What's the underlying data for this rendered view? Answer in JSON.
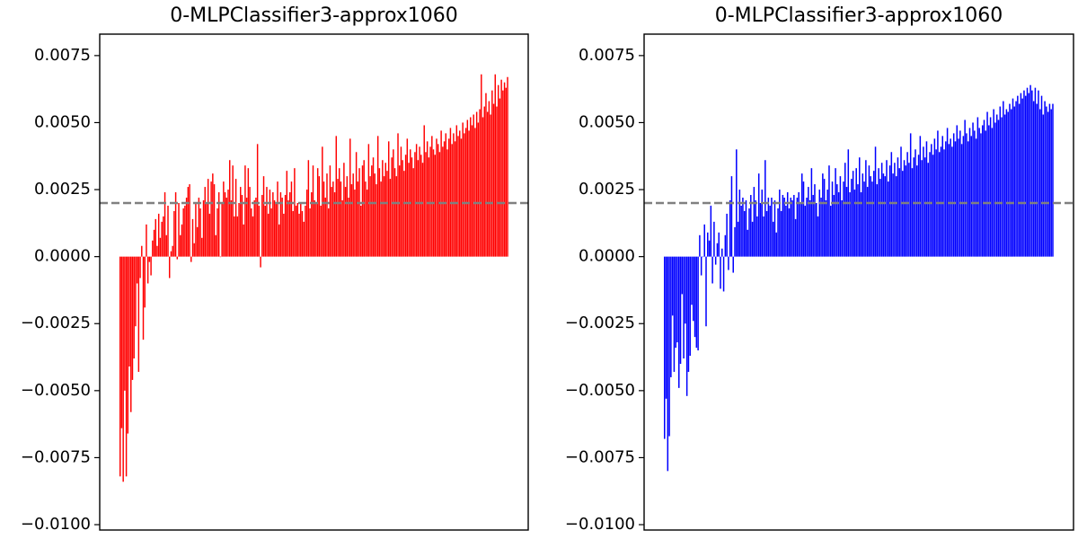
{
  "chart_data": [
    {
      "type": "bar",
      "title": "0-MLPClassifier3-approx1060",
      "xlabel": "",
      "ylabel": "",
      "color": "#ff0000",
      "ylim": [
        -0.0102,
        0.0083
      ],
      "yticks": [
        0.0075,
        0.005,
        0.0025,
        0.0,
        -0.0025,
        -0.005,
        -0.0075,
        -0.01
      ],
      "ytick_labels": [
        "0.0075",
        "0.0050",
        "0.0025",
        "0.0000",
        "−0.0025",
        "−0.0050",
        "−0.0075",
        "−0.0100"
      ],
      "xticks_visible": false,
      "reference_line": {
        "y": 0.002,
        "style": "dashed",
        "color": "#808080"
      },
      "bar_count": 250,
      "sorted_ascending_with_noise": true,
      "value_range": {
        "min": -0.0084,
        "max": 0.0068
      },
      "series": [
        {
          "values": [
            -0.0082,
            -0.0064,
            -0.0084,
            -0.005,
            -0.0082,
            -0.0066,
            -0.0041,
            -0.0058,
            -0.0046,
            -0.0038,
            -0.0026,
            -0.001,
            -0.0043,
            -0.0008,
            0.0004,
            -0.0031,
            -0.0019,
            0.0012,
            -0.001,
            -0.0002,
            -0.0007,
            0.0006,
            0.001,
            0.0014,
            0.0004,
            0.0016,
            0.0007,
            0.0013,
            0.0015,
            0.0024,
            0.0008,
            0.0019,
            -0.0008,
            0.0002,
            0.0004,
            0.0017,
            0.0024,
            -0.0001,
            0.002,
            0.0008,
            0.0012,
            0.0018,
            0.0019,
            0.0022,
            0.0026,
            0.0027,
            -0.0002,
            0.0014,
            0.0005,
            0.002,
            0.0011,
            0.0022,
            0.0018,
            0.0007,
            0.0021,
            0.0026,
            0.002,
            0.0029,
            0.0016,
            0.0028,
            0.0031,
            0.0027,
            0.0008,
            0.0018,
            0.0024,
            0.0,
            0.002,
            0.0028,
            0.0024,
            0.0022,
            0.0025,
            0.0036,
            0.0021,
            0.0034,
            0.0015,
            0.0029,
            0.0015,
            0.002,
            0.0026,
            0.0023,
            0.0012,
            0.0034,
            0.0022,
            0.0033,
            0.0026,
            0.0018,
            0.0015,
            0.0021,
            0.0022,
            0.0042,
            0.0019,
            -0.0004,
            0.0023,
            0.003,
            0.0019,
            0.0026,
            0.0016,
            0.0025,
            0.0018,
            0.0024,
            0.0021,
            0.002,
            0.0028,
            0.0012,
            0.0024,
            0.0022,
            0.0016,
            0.0023,
            0.0032,
            0.0021,
            0.0024,
            0.0028,
            0.0017,
            0.0033,
            0.0019,
            0.002,
            0.0016,
            0.002,
            0.0017,
            0.0013,
            0.0019,
            0.0025,
            0.0036,
            0.0018,
            0.0024,
            0.0034,
            0.0021,
            0.002,
            0.0033,
            0.003,
            0.0019,
            0.0041,
            0.0028,
            0.0022,
            0.0031,
            0.0018,
            0.0034,
            0.0026,
            0.0028,
            0.0024,
            0.0045,
            0.0029,
            0.0033,
            0.0028,
            0.0021,
            0.0035,
            0.0026,
            0.003,
            0.0022,
            0.0044,
            0.0027,
            0.0031,
            0.0025,
            0.0039,
            0.0028,
            0.0033,
            0.0019,
            0.0034,
            0.0036,
            0.0028,
            0.0025,
            0.0042,
            0.003,
            0.0034,
            0.0037,
            0.0031,
            0.0027,
            0.0045,
            0.0033,
            0.0028,
            0.0036,
            0.003,
            0.0035,
            0.0032,
            0.0043,
            0.0029,
            0.0037,
            0.004,
            0.0033,
            0.003,
            0.0046,
            0.0034,
            0.0041,
            0.0036,
            0.0032,
            0.0038,
            0.0044,
            0.0035,
            0.004,
            0.0037,
            0.0033,
            0.0039,
            0.0042,
            0.0036,
            0.0041,
            0.0038,
            0.0035,
            0.0049,
            0.0039,
            0.0043,
            0.0037,
            0.0041,
            0.0045,
            0.004,
            0.0038,
            0.0044,
            0.0042,
            0.0039,
            0.0047,
            0.0041,
            0.0043,
            0.0046,
            0.004,
            0.0044,
            0.0048,
            0.0042,
            0.0046,
            0.0043,
            0.0049,
            0.0045,
            0.0047,
            0.0044,
            0.005,
            0.0046,
            0.0048,
            0.0051,
            0.0047,
            0.0052,
            0.0049,
            0.0053,
            0.0048,
            0.0054,
            0.005,
            0.0055,
            0.0068,
            0.0052,
            0.0056,
            0.0061,
            0.0054,
            0.0058,
            0.0053,
            0.0062,
            0.0057,
            0.0068,
            0.0056,
            0.0064,
            0.0059,
            0.0066,
            0.0062,
            0.0065,
            0.0063,
            0.0067
          ]
        }
      ]
    },
    {
      "type": "bar",
      "title": "0-MLPClassifier3-approx1060",
      "xlabel": "",
      "ylabel": "",
      "color": "#0000ff",
      "ylim": [
        -0.0102,
        0.0083
      ],
      "yticks": [
        0.0075,
        0.005,
        0.0025,
        0.0,
        -0.0025,
        -0.005,
        -0.0075,
        -0.01
      ],
      "ytick_labels": [
        "0.0075",
        "0.0050",
        "0.0025",
        "0.0000",
        "−0.0025",
        "−0.0050",
        "−0.0075",
        "−0.0100"
      ],
      "xticks_visible": false,
      "reference_line": {
        "y": 0.002,
        "style": "dashed",
        "color": "#808080"
      },
      "bar_count": 250,
      "sorted_ascending_with_noise": true,
      "value_range": {
        "min": -0.008,
        "max": 0.0064
      },
      "series": [
        {
          "values": [
            -0.0068,
            -0.0053,
            -0.008,
            -0.0067,
            -0.0045,
            -0.0022,
            -0.0043,
            -0.0034,
            -0.0032,
            -0.0049,
            -0.004,
            -0.0014,
            -0.0038,
            -0.0025,
            -0.0052,
            -0.0043,
            -0.0037,
            -0.0018,
            -0.0024,
            -0.003,
            -0.0034,
            -0.0035,
            0.0008,
            -0.0007,
            0.0,
            0.0012,
            -0.0026,
            0.0009,
            0.0006,
            0.0019,
            -0.001,
            0.0013,
            -0.0003,
            0.0005,
            0.0009,
            -0.0012,
            0.0003,
            -0.0013,
            0.0008,
            0.0016,
            -0.0005,
            0.0021,
            0.003,
            -0.0006,
            0.0011,
            0.004,
            0.0013,
            0.0025,
            0.0019,
            0.0022,
            0.0017,
            0.0021,
            0.001,
            0.0018,
            0.0023,
            0.0013,
            0.0026,
            0.0021,
            0.0015,
            0.0031,
            0.002,
            0.0025,
            0.0015,
            0.0036,
            0.0017,
            0.0022,
            0.0019,
            0.0022,
            0.0013,
            0.0021,
            0.0009,
            0.0018,
            0.0025,
            0.0017,
            0.0023,
            0.0022,
            0.0019,
            0.0024,
            0.0018,
            0.0022,
            0.0021,
            0.0023,
            0.0014,
            0.0022,
            0.0024,
            0.002,
            0.0031,
            0.0028,
            0.0019,
            0.0022,
            0.0026,
            0.0021,
            0.0033,
            0.0023,
            0.0027,
            0.002,
            0.0015,
            0.0025,
            0.0022,
            0.0031,
            0.0029,
            0.0021,
            0.0025,
            0.0034,
            0.0019,
            0.0028,
            0.0023,
            0.0033,
            0.0027,
            0.0024,
            0.003,
            0.0021,
            0.0028,
            0.0035,
            0.0026,
            0.004,
            0.0024,
            0.0029,
            0.0032,
            0.0025,
            0.0033,
            0.0027,
            0.0037,
            0.0024,
            0.0031,
            0.0028,
            0.0036,
            0.0026,
            0.0034,
            0.003,
            0.0028,
            0.0032,
            0.0041,
            0.0027,
            0.0033,
            0.0029,
            0.0035,
            0.0031,
            0.003,
            0.0036,
            0.0028,
            0.0034,
            0.0039,
            0.0031,
            0.0035,
            0.003,
            0.0037,
            0.0033,
            0.0041,
            0.0032,
            0.0036,
            0.0034,
            0.0039,
            0.0035,
            0.0046,
            0.0033,
            0.0037,
            0.004,
            0.0034,
            0.0038,
            0.0045,
            0.0036,
            0.0041,
            0.0037,
            0.0043,
            0.0035,
            0.0039,
            0.0042,
            0.0038,
            0.0044,
            0.004,
            0.0047,
            0.0039,
            0.0041,
            0.0045,
            0.004,
            0.0043,
            0.0048,
            0.0042,
            0.0044,
            0.0041,
            0.0046,
            0.0043,
            0.0049,
            0.0044,
            0.0047,
            0.0042,
            0.0045,
            0.0051,
            0.0046,
            0.0043,
            0.0048,
            0.0045,
            0.005,
            0.0047,
            0.0044,
            0.0052,
            0.0048,
            0.0046,
            0.0049,
            0.0051,
            0.0047,
            0.0054,
            0.0049,
            0.0052,
            0.0048,
            0.0055,
            0.005,
            0.0053,
            0.0051,
            0.0056,
            0.0052,
            0.0058,
            0.0053,
            0.0055,
            0.0054,
            0.0057,
            0.0055,
            0.0059,
            0.0056,
            0.0058,
            0.006,
            0.0057,
            0.0061,
            0.0059,
            0.0062,
            0.006,
            0.0063,
            0.0061,
            0.0064,
            0.0062,
            0.0058,
            0.0063,
            0.0057,
            0.0062,
            0.0055,
            0.006,
            0.0053,
            0.0058,
            0.0056,
            0.0054,
            0.0057,
            0.0055,
            0.0057
          ]
        }
      ]
    }
  ]
}
